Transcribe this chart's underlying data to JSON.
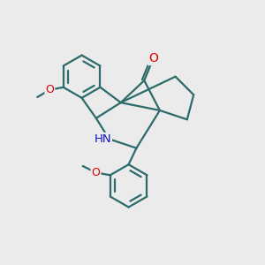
{
  "bg_color": "#ebebeb",
  "bond_color": "#2d6b6b",
  "bond_width": 1.6,
  "atom_O_color": "#dd0000",
  "atom_N_color": "#1111cc",
  "figsize": [
    3.0,
    3.0
  ],
  "dpi": 100,
  "xlim": [
    0,
    10
  ],
  "ylim": [
    0,
    10
  ]
}
